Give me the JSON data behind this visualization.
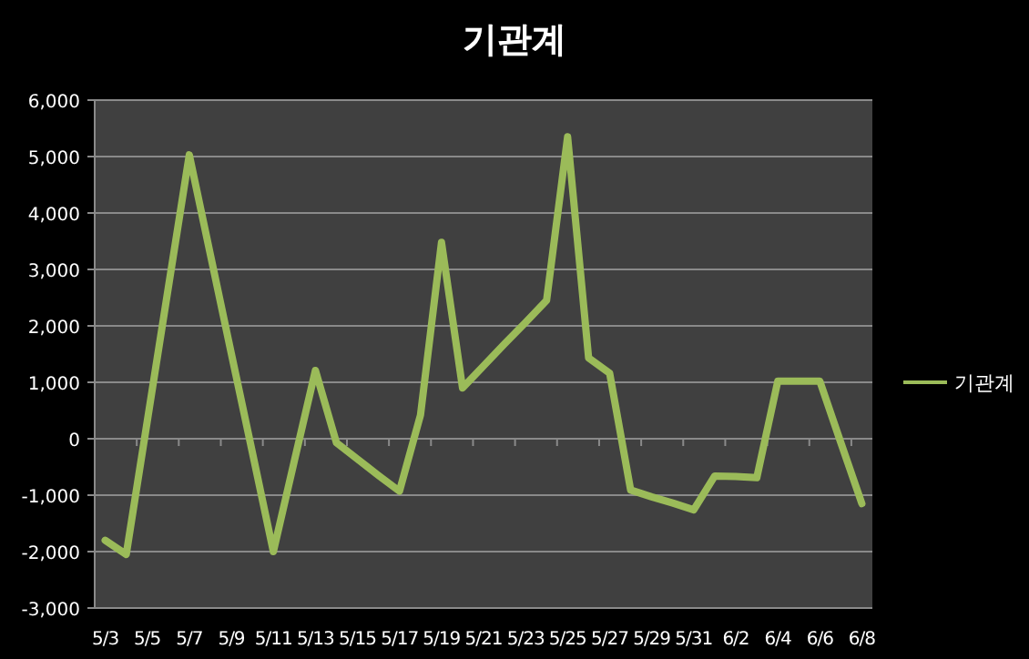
{
  "chart_data": {
    "type": "line",
    "title": "기관계",
    "categories": [
      "5/3",
      null,
      "5/5",
      null,
      "5/7",
      null,
      "5/9",
      null,
      "5/11",
      null,
      "5/13",
      null,
      "5/15",
      null,
      "5/17",
      null,
      "5/19",
      null,
      "5/21",
      null,
      "5/23",
      null,
      "5/25",
      null,
      "5/27",
      null,
      "5/29",
      null,
      "5/31",
      null,
      "6/2",
      null,
      "6/4",
      null,
      "6/6",
      null,
      "6/8"
    ],
    "series": [
      {
        "name": "기관계",
        "color": "#9bbb59",
        "values": [
          -1800,
          -2050,
          310,
          2670,
          5030,
          3270,
          1510,
          -240,
          -2000,
          -390,
          1210,
          -70,
          -360,
          -650,
          -930,
          420,
          3480,
          900,
          1290,
          1680,
          2060,
          2450,
          5350,
          1430,
          1160,
          -910,
          -1030,
          -1140,
          -1260,
          -660,
          -670,
          -690,
          1020,
          1020,
          1020,
          -70,
          -1150
        ]
      }
    ],
    "ylim": [
      -3000,
      6000
    ],
    "yticks": [
      {
        "value": -3000,
        "label": "-3,000"
      },
      {
        "value": -2000,
        "label": "-2,000"
      },
      {
        "value": -1000,
        "label": "-1,000"
      },
      0,
      {
        "value": 1000,
        "label": "1,000"
      },
      {
        "value": 2000,
        "label": "2,000"
      },
      {
        "value": 3000,
        "label": "3,000"
      },
      {
        "value": 4000,
        "label": "4,000"
      },
      {
        "value": 5000,
        "label": "5,000"
      },
      {
        "value": 6000,
        "label": "6,000"
      }
    ],
    "grid": "y",
    "legend": "right"
  }
}
